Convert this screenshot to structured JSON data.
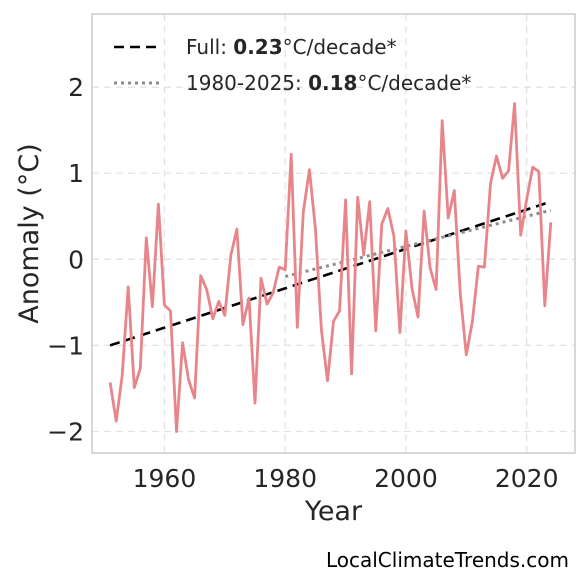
{
  "chart_data": {
    "type": "line",
    "xlabel": "Year",
    "ylabel": "Anomaly (°C)",
    "xlim": [
      1948,
      2028
    ],
    "ylim": [
      -2.25,
      2.85
    ],
    "xticks": [
      1960,
      1980,
      2000,
      2020
    ],
    "yticks": [
      2,
      1,
      0,
      -1,
      -2
    ],
    "ytick_labels": [
      "2",
      "1",
      "0",
      "−1",
      "−2"
    ],
    "grid": true,
    "legend_position": "top-left",
    "series": [
      {
        "kind": "data",
        "color": "#e8858a",
        "x": [
          1951,
          1952,
          1953,
          1954,
          1955,
          1956,
          1957,
          1958,
          1959,
          1960,
          1961,
          1962,
          1963,
          1964,
          1965,
          1966,
          1967,
          1968,
          1969,
          1970,
          1971,
          1972,
          1973,
          1974,
          1975,
          1976,
          1977,
          1978,
          1979,
          1980,
          1981,
          1982,
          1983,
          1984,
          1985,
          1986,
          1987,
          1988,
          1989,
          1990,
          1991,
          1992,
          1993,
          1994,
          1995,
          1996,
          1997,
          1998,
          1999,
          2000,
          2001,
          2002,
          2003,
          2004,
          2005,
          2006,
          2007,
          2008,
          2009,
          2010,
          2011,
          2012,
          2013,
          2014,
          2015,
          2016,
          2017,
          2018,
          2019,
          2020,
          2021,
          2022,
          2023,
          2024
        ],
        "y": [
          -1.43,
          -1.88,
          -1.35,
          -0.32,
          -1.49,
          -1.27,
          0.25,
          -0.55,
          0.64,
          -0.53,
          -0.6,
          -2.0,
          -0.97,
          -1.4,
          -1.61,
          -0.19,
          -0.35,
          -0.69,
          -0.49,
          -0.65,
          0.05,
          0.35,
          -0.76,
          -0.45,
          -1.67,
          -0.22,
          -0.52,
          -0.39,
          -0.09,
          -0.12,
          1.22,
          -0.79,
          0.55,
          1.04,
          0.36,
          -0.82,
          -1.41,
          -0.72,
          -0.6,
          0.69,
          -1.33,
          0.72,
          0.05,
          0.67,
          -0.83,
          0.41,
          0.59,
          0.27,
          -0.85,
          0.33,
          -0.34,
          -0.67,
          0.56,
          -0.1,
          -0.35,
          1.61,
          0.48,
          0.8,
          -0.4,
          -1.11,
          -0.72,
          -0.08,
          -0.09,
          0.88,
          1.2,
          0.94,
          1.03,
          1.81,
          0.28,
          0.7,
          1.07,
          1.02,
          -0.54,
          0.43
        ]
      },
      {
        "kind": "trend",
        "name_prefix": "Full: ",
        "name_value": "0.23",
        "name_suffix": "°C/decade*",
        "color": "#000000",
        "style": "dashed",
        "x": [
          1951,
          2024
        ],
        "y": [
          -1.0,
          0.67
        ]
      },
      {
        "kind": "trend",
        "name_prefix": "1980-2025: ",
        "name_value": "0.18",
        "name_suffix": "°C/decade*",
        "color": "#8c8c8c",
        "style": "dotted",
        "x": [
          1980,
          2024
        ],
        "y": [
          -0.2,
          0.57
        ]
      }
    ]
  },
  "credit": "LocalClimateTrends.com"
}
